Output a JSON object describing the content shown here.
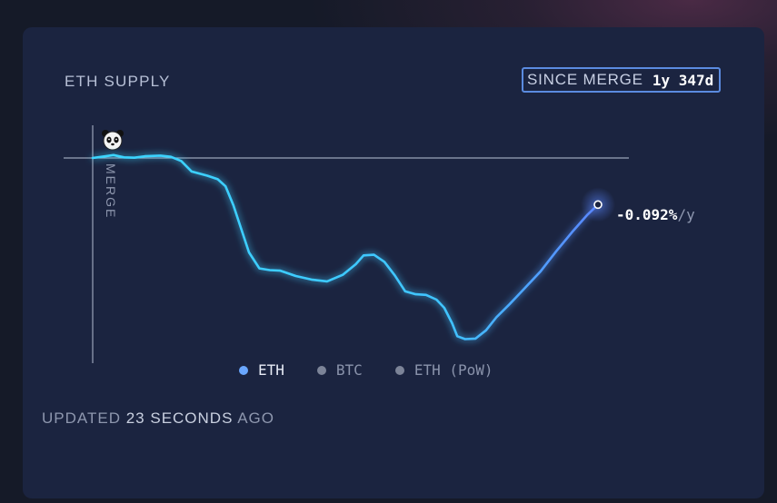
{
  "card": {
    "title": "ETH SUPPLY"
  },
  "since": {
    "label": "SINCE MERGE",
    "value": "1y 347d"
  },
  "rate": {
    "value": "-0.092%",
    "unit": "/y"
  },
  "merge_label": "MERGE",
  "legend": [
    {
      "label": "ETH",
      "active": true
    },
    {
      "label": "BTC",
      "active": false
    },
    {
      "label": "ETH (PoW)",
      "active": false
    }
  ],
  "updated": {
    "prefix": "UPDATED",
    "amount": "23 SECONDS",
    "suffix": "AGO"
  },
  "colors": {
    "line_start": "#3ad6ff",
    "line_end": "#5a86ff",
    "active_dot": "#6aa7ff",
    "card": "#1b2440"
  },
  "chart_data": {
    "type": "line",
    "series": [
      {
        "name": "ETH",
        "points": [
          [
            0.0,
            0.0
          ],
          [
            0.025,
            0.3
          ],
          [
            0.04,
            0.5
          ],
          [
            0.06,
            0.1
          ],
          [
            0.08,
            0.05
          ],
          [
            0.1,
            0.3
          ],
          [
            0.13,
            0.4
          ],
          [
            0.15,
            0.2
          ],
          [
            0.17,
            -0.5
          ],
          [
            0.19,
            -2.3
          ],
          [
            0.22,
            -3.0
          ],
          [
            0.24,
            -3.6
          ],
          [
            0.255,
            -4.8
          ],
          [
            0.27,
            -8.0
          ],
          [
            0.285,
            -12.0
          ],
          [
            0.3,
            -16.0
          ],
          [
            0.32,
            -18.7
          ],
          [
            0.34,
            -19.0
          ],
          [
            0.36,
            -19.1
          ],
          [
            0.39,
            -20.0
          ],
          [
            0.42,
            -20.6
          ],
          [
            0.45,
            -20.9
          ],
          [
            0.48,
            -19.8
          ],
          [
            0.505,
            -18.0
          ],
          [
            0.52,
            -16.5
          ],
          [
            0.54,
            -16.4
          ],
          [
            0.56,
            -17.6
          ],
          [
            0.58,
            -19.9
          ],
          [
            0.6,
            -22.6
          ],
          [
            0.62,
            -23.1
          ],
          [
            0.64,
            -23.2
          ],
          [
            0.66,
            -24.0
          ],
          [
            0.675,
            -25.4
          ],
          [
            0.69,
            -28.0
          ],
          [
            0.7,
            -30.2
          ],
          [
            0.715,
            -30.7
          ],
          [
            0.735,
            -30.6
          ],
          [
            0.755,
            -29.2
          ],
          [
            0.775,
            -27.0
          ],
          [
            0.8,
            -24.8
          ],
          [
            0.83,
            -22.0
          ],
          [
            0.86,
            -19.2
          ],
          [
            0.89,
            -15.8
          ],
          [
            0.92,
            -12.6
          ],
          [
            0.95,
            -9.6
          ],
          [
            0.97,
            -7.9
          ]
        ]
      }
    ],
    "baseline": 0,
    "rate_label": "-0.092%/y",
    "title": "ETH SUPPLY",
    "legend": [
      "ETH",
      "BTC",
      "ETH (PoW)"
    ]
  }
}
